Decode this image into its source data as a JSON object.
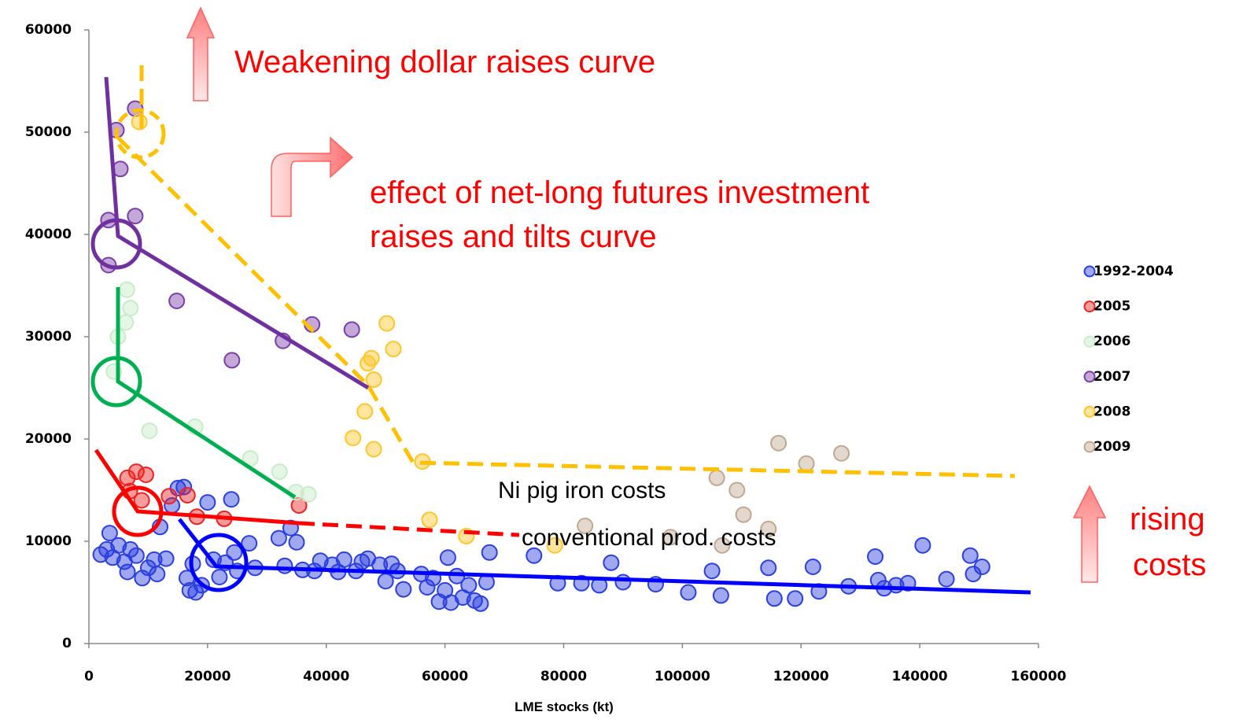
{
  "chart_data": {
    "type": "scatter",
    "x_label": "LME stocks (kt)",
    "xlim": [
      0,
      160000
    ],
    "xticks": [
      0,
      20000,
      40000,
      60000,
      80000,
      100000,
      120000,
      140000,
      160000
    ],
    "ylim": [
      0,
      60000
    ],
    "yticks": [
      0,
      10000,
      20000,
      30000,
      40000,
      50000,
      60000
    ],
    "legend": "right",
    "annotations": [
      "Weakening dollar raises curve",
      "effect of net-long futures investment",
      "raises and tilts curve",
      "Ni pig iron costs",
      "conventional prod. costs",
      "rising",
      "costs"
    ],
    "series": [
      {
        "name": "1992-2004",
        "color": "#2b3fe0",
        "x": [
          2000,
          3000,
          3500,
          4000,
          5000,
          6000,
          6500,
          7000,
          8000,
          9000,
          10000,
          11000,
          11500,
          12000,
          13000,
          14000,
          15000,
          16000,
          16500,
          17000,
          17500,
          18000,
          19000,
          20000,
          21000,
          22000,
          23000,
          24000,
          24500,
          25000,
          27000,
          28000,
          32000,
          33000,
          34000,
          35000,
          36000,
          38000,
          39000,
          41000,
          42000,
          43000,
          45000,
          46000,
          47000,
          49000,
          50000,
          51000,
          52000,
          53000,
          56000,
          57000,
          58000,
          59000,
          60000,
          60500,
          61000,
          62000,
          63000,
          64000,
          65000,
          66000,
          67000,
          67500,
          75000,
          79000,
          83000,
          86000,
          88000,
          90000,
          95500,
          101000,
          105000,
          106500,
          114500,
          115500,
          119000,
          122000,
          123000,
          128000,
          132500,
          133000,
          134000,
          136000,
          138000,
          140500,
          144500,
          148500,
          149000,
          150500
        ],
        "values": [
          8700,
          9200,
          10800,
          8400,
          9600,
          8000,
          7000,
          9200,
          8600,
          6400,
          7400,
          8200,
          6800,
          11400,
          8300,
          13500,
          15200,
          15300,
          6400,
          5200,
          7800,
          5000,
          5700,
          13800,
          8200,
          6500,
          7900,
          14100,
          8900,
          7100,
          9800,
          7400,
          10300,
          7600,
          11300,
          9900,
          7200,
          7100,
          8100,
          7700,
          7000,
          8200,
          7100,
          8000,
          8300,
          7700,
          6100,
          7800,
          7100,
          5300,
          6800,
          5500,
          6400,
          4100,
          5200,
          8400,
          4000,
          6600,
          4500,
          5700,
          4200,
          3900,
          6000,
          8900,
          8600,
          5900,
          5900,
          5700,
          7900,
          6000,
          5800,
          5000,
          7100,
          4700,
          7400,
          4400,
          4400,
          7500,
          5100,
          5600,
          8500,
          6200,
          5400,
          5700,
          5900,
          9600,
          6300,
          8600,
          6800,
          7500
        ]
      },
      {
        "name": "2005",
        "color": "#ee2222",
        "x": [
          6500,
          8000,
          9600,
          6900,
          13500,
          16600,
          18200,
          22800,
          35400,
          8900
        ],
        "values": [
          16200,
          16800,
          16500,
          14900,
          14400,
          14500,
          12400,
          12200,
          13500,
          14000
        ]
      },
      {
        "name": "2006",
        "color": "#c8ecc8",
        "x": [
          6400,
          7000,
          6200,
          4900,
          4200,
          10200,
          17900,
          27200,
          32100,
          34900,
          37000
        ],
        "values": [
          34600,
          32800,
          31400,
          30000,
          26600,
          20800,
          21200,
          18100,
          16800,
          14800,
          14600
        ]
      },
      {
        "name": "2007",
        "color": "#7a3ea8",
        "x": [
          4640,
          5300,
          7800,
          7800,
          3300,
          3300,
          14800,
          24100,
          32700,
          37600,
          44300
        ],
        "values": [
          50200,
          46400,
          52300,
          41800,
          41400,
          37000,
          33500,
          27700,
          29600,
          31200,
          30700
        ]
      },
      {
        "name": "2008",
        "color": "#ffc629",
        "x": [
          8500,
          50200,
          51300,
          47600,
          47000,
          48000,
          46500,
          44500,
          48000,
          56200,
          57400,
          63600,
          78500
        ],
        "values": [
          51000,
          31300,
          28800,
          27900,
          27400,
          25800,
          22700,
          20100,
          19000,
          17800,
          12100,
          10500,
          9600
        ]
      },
      {
        "name": "2009",
        "color": "#c0a890",
        "x": [
          116200,
          120900,
          126800,
          105800,
          109200,
          110300,
          114500,
          106700,
          83600,
          98000
        ],
        "values": [
          19600,
          17600,
          18600,
          16200,
          15000,
          12600,
          11200,
          9600,
          11500,
          10400
        ]
      }
    ]
  }
}
